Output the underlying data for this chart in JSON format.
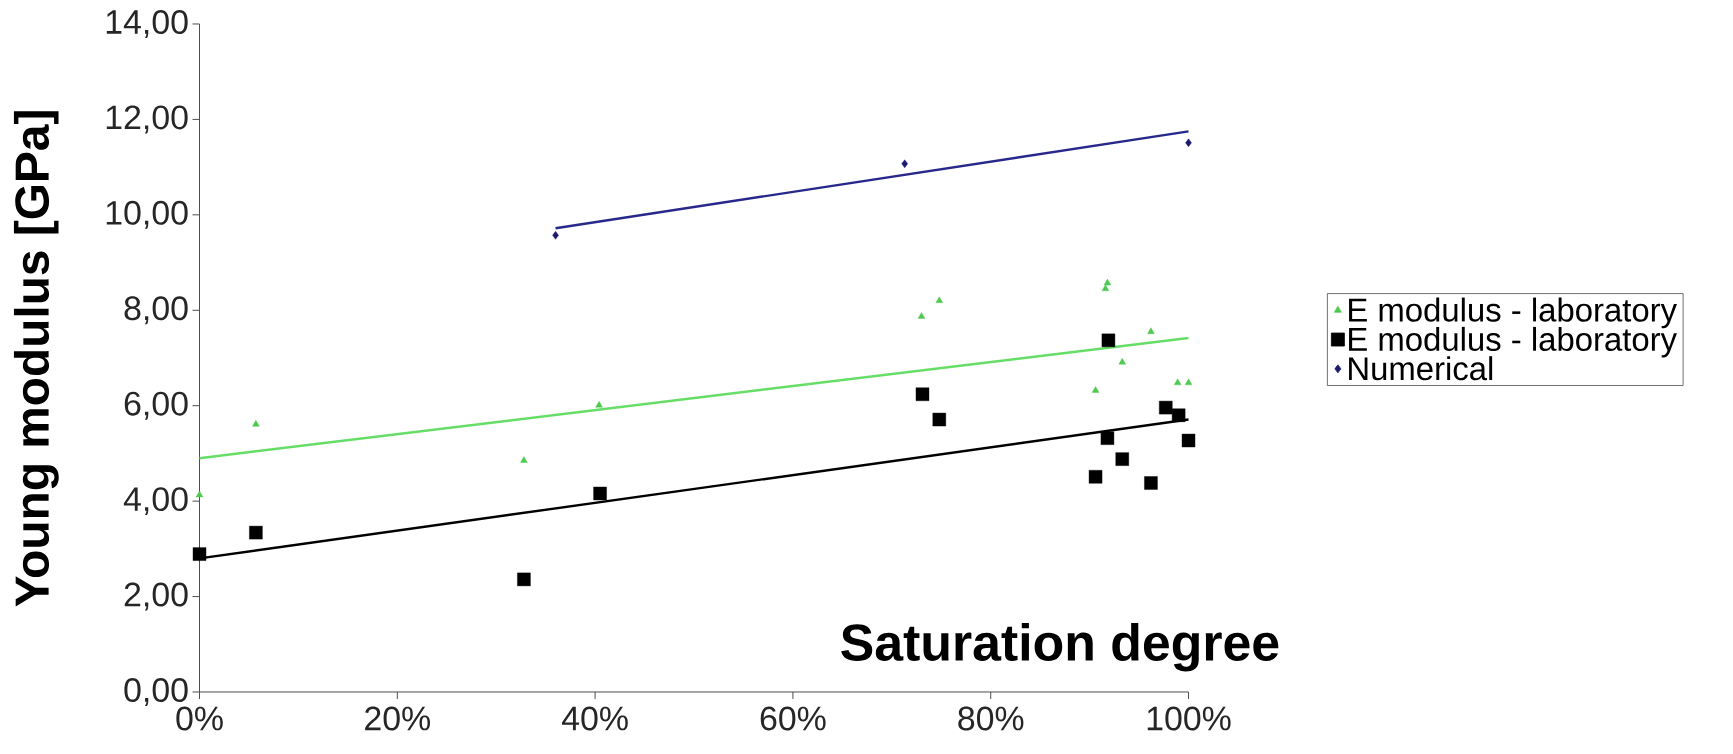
{
  "chart_data": {
    "type": "scatter",
    "xlabel": "Saturation degree",
    "ylabel": "Young modulus [GPa]",
    "xlim": [
      0,
      1
    ],
    "ylim": [
      0,
      14
    ],
    "xticks": [
      {
        "value": 0,
        "label": "0%"
      },
      {
        "value": 0.2,
        "label": "20%"
      },
      {
        "value": 0.4,
        "label": "40%"
      },
      {
        "value": 0.6,
        "label": "60%"
      },
      {
        "value": 0.8,
        "label": "80%"
      },
      {
        "value": 1,
        "label": "100%"
      }
    ],
    "yticks": [
      {
        "value": 0,
        "label": "0,00"
      },
      {
        "value": 2,
        "label": "2,00"
      },
      {
        "value": 4,
        "label": "4,00"
      },
      {
        "value": 6,
        "label": "6,00"
      },
      {
        "value": 8,
        "label": "8,00"
      },
      {
        "value": 10,
        "label": "10,00"
      },
      {
        "value": 12,
        "label": "12,00"
      },
      {
        "value": 14,
        "label": "14,00"
      }
    ],
    "legend": "right",
    "series": [
      {
        "name": "E modulus - laboratory",
        "type": "scatter",
        "marker": "triangle",
        "color": "#4fc94f",
        "x": [
          0,
          0.057,
          0.328,
          0.404,
          0.73,
          0.748,
          0.918,
          0.916,
          0.962,
          0.933,
          0.906,
          0.989,
          1.0
        ],
        "values": [
          4.13,
          5.61,
          4.85,
          6.01,
          7.87,
          8.2,
          8.57,
          8.45,
          7.55,
          6.91,
          6.32,
          6.48,
          6.48
        ]
      },
      {
        "name": "E modulus - laboratory",
        "type": "scatter",
        "marker": "square",
        "color": "#000000",
        "x": [
          0,
          0.057,
          0.328,
          0.405,
          0.731,
          0.748,
          0.919,
          0.918,
          0.933,
          0.906,
          0.962,
          0.977,
          0.99,
          1.0
        ],
        "values": [
          2.89,
          3.34,
          2.36,
          4.16,
          6.24,
          5.71,
          7.37,
          5.32,
          4.88,
          4.51,
          4.38,
          5.96,
          5.8,
          5.27
        ]
      },
      {
        "name": "Numerical",
        "type": "scatter",
        "marker": "diamond",
        "color": "#1a1a6e",
        "x": [
          0.36,
          0.713,
          1.0
        ],
        "values": [
          9.57,
          11.07,
          11.51
        ]
      },
      {
        "type": "line",
        "marker": "none",
        "color": "#66dd66",
        "x": [
          0,
          1
        ],
        "values": [
          4.9,
          7.42
        ]
      },
      {
        "type": "line",
        "marker": "none",
        "color": "#000000",
        "x": [
          0,
          1
        ],
        "values": [
          2.8,
          5.71
        ]
      },
      {
        "type": "line",
        "marker": "none",
        "color": "#28288c",
        "x": [
          0.36,
          1
        ],
        "values": [
          9.72,
          11.75
        ]
      }
    ]
  }
}
